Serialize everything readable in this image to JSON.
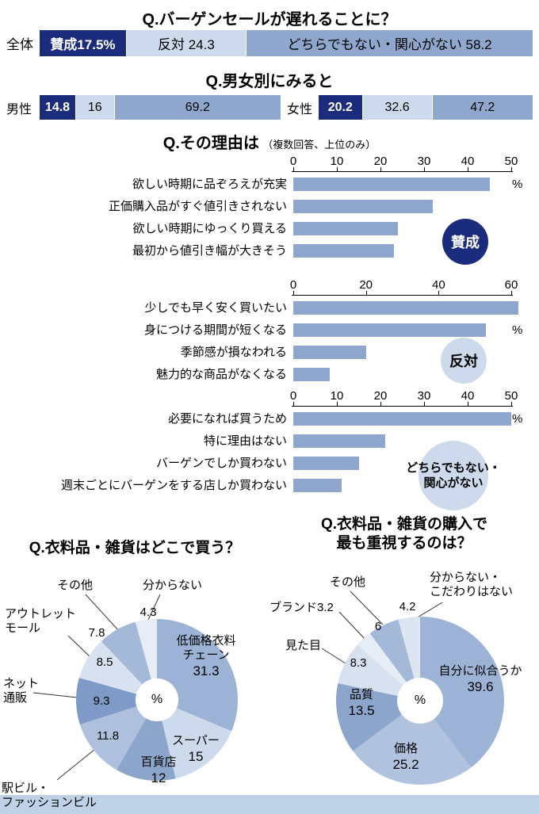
{
  "header": {
    "title": "Q.バーゲンセールが遅れることに？",
    "gender_title": "Q.男女別にみると",
    "reason_title": "Q.その理由は",
    "reason_note": "（複数回答、上位のみ）"
  },
  "colors": {
    "navy": "#1b2c7d",
    "light": "#cddaec",
    "medium": "#8fa7cc",
    "bar": "#8fa7cc",
    "band": "#bfd1e6"
  },
  "chart_data": [
    {
      "type": "bar",
      "subtype": "stacked-horizontal",
      "question": "Q.バーゲンセールが遅れることに？",
      "row_label": "全体",
      "segments": [
        {
          "name": "agree",
          "label": "賛成17.5%",
          "value": 17.5,
          "color": "#1b2c7d",
          "text_color": "#ffffff",
          "bold": true
        },
        {
          "name": "oppose",
          "label": "反対 24.3",
          "value": 24.3,
          "color": "#cddaec"
        },
        {
          "name": "neither",
          "label": "どちらでもない・関心がない 58.2",
          "value": 58.2,
          "color": "#8fa7cc"
        }
      ]
    },
    {
      "type": "bar",
      "subtype": "stacked-horizontal",
      "question": "Q.男女別にみると",
      "rows": [
        {
          "label": "男性",
          "segments": [
            {
              "name": "agree",
              "label": "14.8",
              "value": 14.8,
              "color": "#1b2c7d",
              "text_color": "#ffffff",
              "bold": true
            },
            {
              "name": "oppose",
              "label": "16",
              "value": 16,
              "color": "#cddaec"
            },
            {
              "name": "neither",
              "label": "69.2",
              "value": 69.2,
              "color": "#8fa7cc"
            }
          ]
        },
        {
          "label": "女性",
          "segments": [
            {
              "name": "agree",
              "label": "20.2",
              "value": 20.2,
              "color": "#1b2c7d",
              "text_color": "#ffffff",
              "bold": true
            },
            {
              "name": "oppose",
              "label": "32.6",
              "value": 32.6,
              "color": "#cddaec"
            },
            {
              "name": "neither",
              "label": "47.2",
              "value": 47.2,
              "color": "#8fa7cc"
            }
          ]
        }
      ]
    },
    {
      "type": "bar",
      "subtype": "horizontal",
      "badge": "賛成",
      "unit": "%",
      "max": 50,
      "ticks": [
        0,
        10,
        20,
        30,
        40,
        50
      ],
      "items": [
        {
          "label": "欲しい時期に品ぞろえが充実",
          "value": 45
        },
        {
          "label": "正価購入品がすぐ値引きされない",
          "value": 32
        },
        {
          "label": "欲しい時期にゆっくり買える",
          "value": 24
        },
        {
          "label": "最初から値引き幅が大きそう",
          "value": 23
        }
      ]
    },
    {
      "type": "bar",
      "subtype": "horizontal",
      "badge": "反対",
      "unit": "%",
      "max": 60,
      "ticks": [
        0,
        20,
        40,
        60
      ],
      "items": [
        {
          "label": "少しでも早く安く買いたい",
          "value": 62
        },
        {
          "label": "身につける期間が短くなる",
          "value": 53
        },
        {
          "label": "季節感が損なわれる",
          "value": 20
        },
        {
          "label": "魅力的な商品がなくなる",
          "value": 10
        }
      ]
    },
    {
      "type": "bar",
      "subtype": "horizontal",
      "badge": "どちらでもない・関心がない",
      "unit": "%",
      "max": 50,
      "ticks": [
        0,
        10,
        20,
        30,
        40,
        50
      ],
      "items": [
        {
          "label": "必要になれば買うため",
          "value": 50
        },
        {
          "label": "特に理由はない",
          "value": 21
        },
        {
          "label": "バーゲンでしか買わない",
          "value": 15
        },
        {
          "label": "週末ごとにバーゲンをする店しか買わない",
          "value": 11
        }
      ]
    },
    {
      "type": "pie",
      "title": "Q.衣料品・雑貨はどこで買う？",
      "center_label": "%",
      "slices": [
        {
          "label": "低価格衣料チェーン",
          "lines": [
            "低価格衣料",
            "チェーン"
          ],
          "value": 31.3,
          "color": "#9db3d6"
        },
        {
          "label": "スーパー",
          "value": 15,
          "color": "#cddaec"
        },
        {
          "label": "百貨店",
          "value": 12,
          "color": "#8ba5cb"
        },
        {
          "label": "駅ビル・ファッションビル",
          "lines": [
            "駅ビル・",
            "ファッションビル"
          ],
          "value": 11.8,
          "color": "#aec0de"
        },
        {
          "label": "ネット通販",
          "lines": [
            "ネット",
            "通販"
          ],
          "value": 9.3,
          "color": "#7e9ac6"
        },
        {
          "label": "アウトレットモール",
          "lines": [
            "アウトレット",
            "モール"
          ],
          "value": 8.5,
          "color": "#d7e1f0"
        },
        {
          "label": "その他",
          "value": 7.8,
          "color": "#a4b8d8"
        },
        {
          "label": "分からない",
          "value": 4.3,
          "color": "#e7edf6"
        }
      ]
    },
    {
      "type": "pie",
      "title": "Q.衣料品・雑貨の購入で最も重視するのは？",
      "title_lines": [
        "Q.衣料品・雑貨の購入で",
        "最も重視するのは？"
      ],
      "center_label": "%",
      "slices": [
        {
          "label": "自分に似合うか",
          "value": 39.6,
          "color": "#9db3d6"
        },
        {
          "label": "価格",
          "value": 25.2,
          "color": "#b0c2de"
        },
        {
          "label": "品質",
          "value": 13.5,
          "color": "#8ba5cb"
        },
        {
          "label": "見た目",
          "value": 8.3,
          "color": "#d7e1f0"
        },
        {
          "label": "ブランド",
          "value": 3.2,
          "color": "#e7edf6"
        },
        {
          "label": "その他",
          "value": 6,
          "color": "#a4b8d8"
        },
        {
          "label": "分からない・こだわりはない",
          "lines": [
            "分からない・",
            "こだわりはない"
          ],
          "value": 4.2,
          "color": "#dde5f1"
        }
      ]
    }
  ]
}
